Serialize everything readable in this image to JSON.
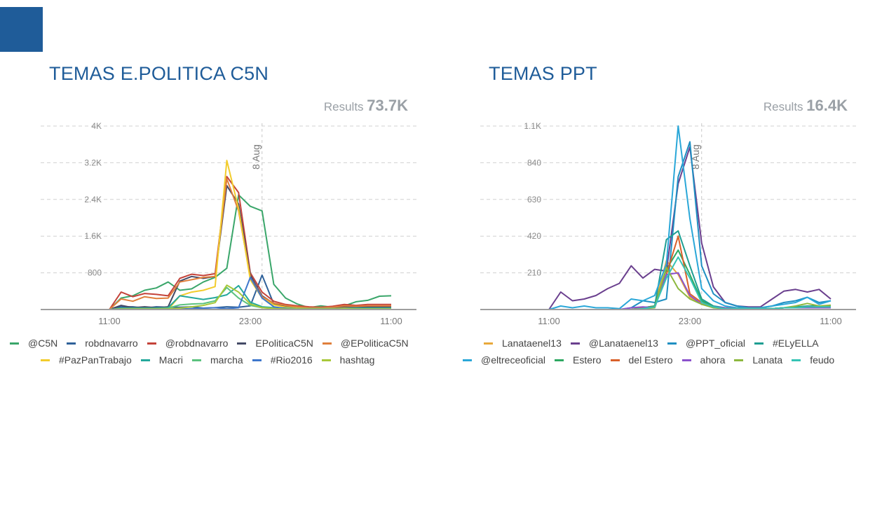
{
  "chart_data": [
    {
      "type": "line",
      "title": "TEMAS E.POLITICA C5N",
      "results_label": "Results",
      "results_value": "73.7K",
      "x_tick_labels": [
        "11:00",
        "23:00",
        "11:00"
      ],
      "x_tick_index": [
        0,
        12,
        24
      ],
      "date_marker": "8 Aug",
      "date_marker_index": 13,
      "y_ticks": [
        800,
        1600,
        2400,
        3200,
        4000
      ],
      "y_tick_labels": [
        "800",
        "1.6K",
        "2.4K",
        "3.2K",
        "4K"
      ],
      "ylim": [
        0,
        4000
      ],
      "n_points": 25,
      "grid": "horizontal dashed",
      "legend_position": "bottom",
      "series": [
        {
          "name": "@C5N",
          "color": "#3aa66a",
          "values": [
            0,
            250,
            300,
            420,
            470,
            600,
            420,
            450,
            600,
            700,
            900,
            2500,
            2250,
            2150,
            550,
            250,
            120,
            40,
            80,
            50,
            80,
            170,
            200,
            290,
            300
          ]
        },
        {
          "name": "robdnavarro",
          "color": "#2f6199",
          "values": [
            0,
            60,
            60,
            30,
            60,
            50,
            50,
            60,
            30,
            40,
            60,
            50,
            80,
            750,
            120,
            50,
            30,
            20,
            20,
            20,
            30,
            30,
            30,
            40,
            40
          ]
        },
        {
          "name": "@robdnavarro",
          "color": "#c4433a",
          "values": [
            0,
            380,
            280,
            350,
            330,
            300,
            680,
            770,
            740,
            780,
            2900,
            2550,
            800,
            380,
            180,
            110,
            80,
            60,
            50,
            70,
            110,
            90,
            110,
            110,
            110
          ]
        },
        {
          "name": "EPoliticaC5N",
          "color": "#444a66",
          "values": [
            0,
            90,
            40,
            60,
            40,
            60,
            620,
            720,
            680,
            720,
            2700,
            2300,
            750,
            300,
            130,
            70,
            50,
            30,
            30,
            40,
            60,
            60,
            60,
            60,
            60
          ]
        },
        {
          "name": "@EPoliticaC5N",
          "color": "#e07f3c",
          "values": [
            0,
            230,
            180,
            280,
            240,
            250,
            600,
            650,
            700,
            720,
            2850,
            2150,
            700,
            280,
            140,
            90,
            60,
            40,
            40,
            50,
            80,
            70,
            80,
            80,
            80
          ]
        },
        {
          "name": "#PazPanTrabajo",
          "color": "#f2cc2c",
          "values": [
            0,
            0,
            0,
            0,
            0,
            0,
            300,
            380,
            420,
            500,
            3250,
            2200,
            650,
            250,
            100,
            50,
            30,
            20,
            20,
            20,
            30,
            30,
            30,
            30,
            30
          ]
        },
        {
          "name": "Macri",
          "color": "#24a89c",
          "values": [
            0,
            30,
            30,
            30,
            30,
            40,
            300,
            260,
            220,
            260,
            320,
            520,
            160,
            60,
            40,
            30,
            20,
            20,
            20,
            20,
            20,
            30,
            30,
            30,
            30
          ]
        },
        {
          "name": "marcha",
          "color": "#5bc27e",
          "values": [
            0,
            20,
            20,
            20,
            20,
            30,
            100,
            120,
            130,
            190,
            480,
            250,
            90,
            40,
            30,
            20,
            10,
            10,
            10,
            10,
            10,
            20,
            20,
            20,
            20
          ]
        },
        {
          "name": "#Rio2016",
          "color": "#3e77cc",
          "values": [
            0,
            10,
            10,
            10,
            10,
            10,
            10,
            20,
            30,
            40,
            20,
            40,
            700,
            250,
            60,
            20,
            10,
            10,
            10,
            10,
            10,
            10,
            10,
            10,
            10
          ]
        },
        {
          "name": "hashtag",
          "color": "#a8c83a",
          "values": [
            0,
            10,
            10,
            10,
            10,
            10,
            30,
            60,
            90,
            150,
            530,
            380,
            120,
            40,
            20,
            10,
            10,
            10,
            10,
            10,
            10,
            10,
            10,
            10,
            10
          ]
        }
      ]
    },
    {
      "type": "line",
      "title": "TEMAS PPT",
      "results_label": "Results",
      "results_value": "16.4K",
      "x_tick_labels": [
        "11:00",
        "23:00",
        "11:00"
      ],
      "x_tick_index": [
        0,
        12,
        24
      ],
      "date_marker": "8 Aug",
      "date_marker_index": 13,
      "y_ticks": [
        210,
        420,
        630,
        840,
        1050
      ],
      "y_tick_labels": [
        "210",
        "420",
        "630",
        "840",
        "1.1K"
      ],
      "ylim": [
        0,
        1050
      ],
      "n_points": 25,
      "grid": "horizontal dashed",
      "legend_position": "bottom",
      "series": [
        {
          "name": "Lanataenel13",
          "color": "#e8a93b",
          "values": [
            0,
            0,
            0,
            0,
            0,
            0,
            0,
            0,
            10,
            20,
            280,
            200,
            70,
            30,
            15,
            10,
            5,
            5,
            5,
            5,
            10,
            15,
            15,
            15,
            15
          ]
        },
        {
          "name": "@Lanataenel13",
          "color": "#6a3f8e",
          "values": [
            0,
            100,
            50,
            60,
            80,
            120,
            150,
            250,
            180,
            230,
            220,
            720,
            930,
            380,
            130,
            40,
            20,
            15,
            15,
            60,
            105,
            115,
            100,
            115,
            60
          ]
        },
        {
          "name": "@PPT_oficial",
          "color": "#1f8fc2",
          "values": [
            0,
            0,
            0,
            0,
            0,
            0,
            0,
            10,
            50,
            40,
            60,
            760,
            960,
            250,
            90,
            40,
            20,
            10,
            10,
            20,
            40,
            50,
            70,
            40,
            50
          ]
        },
        {
          "name": "#ELyELLA",
          "color": "#1e9e92",
          "values": [
            0,
            0,
            0,
            0,
            0,
            0,
            0,
            0,
            10,
            20,
            400,
            450,
            250,
            60,
            20,
            10,
            5,
            5,
            5,
            5,
            10,
            15,
            20,
            20,
            20
          ]
        },
        {
          "name": "@eltreceoficial",
          "color": "#2aa7d8",
          "values": [
            0,
            20,
            10,
            20,
            10,
            10,
            5,
            60,
            50,
            80,
            260,
            1050,
            520,
            120,
            50,
            20,
            10,
            10,
            10,
            20,
            30,
            40,
            70,
            30,
            50
          ]
        },
        {
          "name": "Estero",
          "color": "#2ea862",
          "values": [
            0,
            0,
            0,
            0,
            0,
            0,
            0,
            0,
            10,
            20,
            230,
            340,
            200,
            50,
            15,
            5,
            5,
            5,
            5,
            5,
            10,
            10,
            15,
            15,
            15
          ]
        },
        {
          "name": "del Estero",
          "color": "#d9602a",
          "values": [
            0,
            0,
            0,
            0,
            0,
            0,
            0,
            0,
            10,
            15,
            200,
            420,
            90,
            40,
            15,
            5,
            5,
            5,
            5,
            5,
            10,
            10,
            15,
            15,
            15
          ]
        },
        {
          "name": "ahora",
          "color": "#8b52cc",
          "values": [
            0,
            0,
            0,
            0,
            0,
            0,
            0,
            10,
            15,
            10,
            200,
            210,
            80,
            30,
            15,
            10,
            5,
            5,
            5,
            5,
            10,
            10,
            10,
            10,
            10
          ]
        },
        {
          "name": "Lanata",
          "color": "#8db83f",
          "values": [
            0,
            0,
            0,
            0,
            0,
            0,
            0,
            0,
            5,
            10,
            240,
            120,
            60,
            30,
            10,
            5,
            5,
            5,
            5,
            5,
            10,
            20,
            35,
            20,
            25
          ]
        },
        {
          "name": "feudo",
          "color": "#35c4b5",
          "values": [
            0,
            0,
            0,
            0,
            0,
            0,
            0,
            0,
            5,
            15,
            180,
            300,
            180,
            40,
            15,
            5,
            5,
            5,
            5,
            5,
            10,
            10,
            15,
            15,
            15
          ]
        }
      ]
    }
  ]
}
